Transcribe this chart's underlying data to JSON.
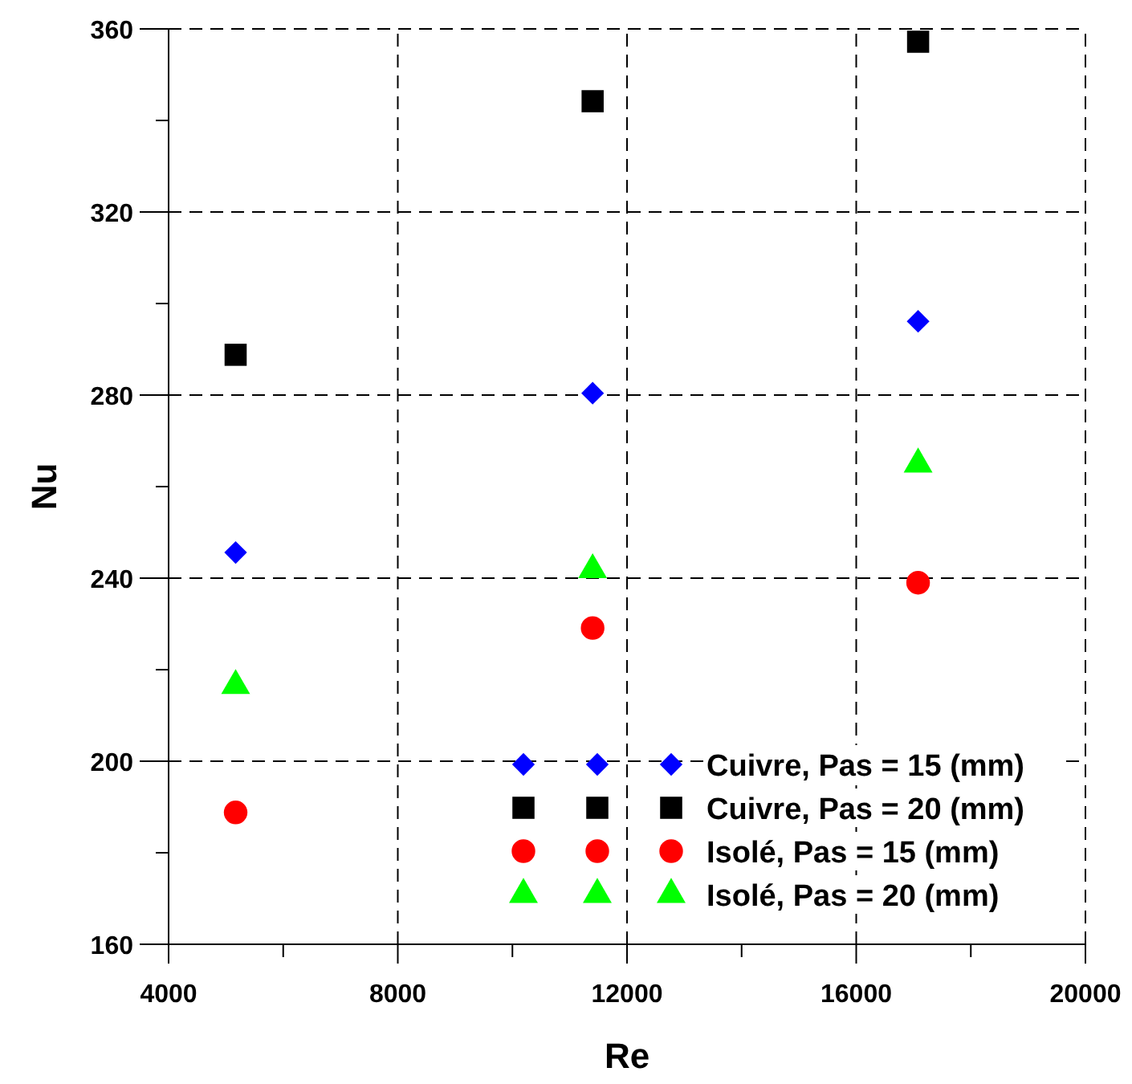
{
  "chart_data": {
    "type": "scatter",
    "xlabel": "Re",
    "ylabel": "Nu",
    "x": [
      5170,
      11400,
      17080
    ],
    "xlim": [
      4000,
      20000
    ],
    "xticks": [
      4000,
      {
        "value": 6000,
        "label": null
      },
      8000,
      {
        "value": 10000,
        "label": null
      },
      12000,
      {
        "value": 14000,
        "label": null
      },
      16000,
      {
        "value": 18000,
        "label": null
      },
      20000
    ],
    "ylim": [
      160,
      360
    ],
    "yticks": [
      160,
      {
        "value": 180,
        "label": null
      },
      200,
      {
        "value": 220,
        "label": null
      },
      240,
      {
        "value": 260,
        "label": null
      },
      280,
      {
        "value": 300,
        "label": null
      },
      320,
      {
        "value": 340,
        "label": null
      },
      360
    ],
    "grid": true,
    "legend": "bottom right",
    "series": [
      {
        "name": "Cuivre, Pas = 15 (mm)",
        "color": "#0000ff",
        "marker": "diamond",
        "values": [
          245.6,
          280.4,
          296.1
        ]
      },
      {
        "name": "Cuivre, Pas = 20 (mm)",
        "color": "#000000",
        "marker": "square",
        "values": [
          288.8,
          344.2,
          357.2
        ]
      },
      {
        "name": "Isolé, Pas = 15 (mm)",
        "color": "#ff0000",
        "marker": "circle",
        "values": [
          188.8,
          229.1,
          239
        ]
      },
      {
        "name": "Isolé, Pas = 20 (mm)",
        "color": "#00ff00",
        "marker": "triangle",
        "values": [
          216.5,
          241.8,
          264.9
        ]
      }
    ]
  }
}
